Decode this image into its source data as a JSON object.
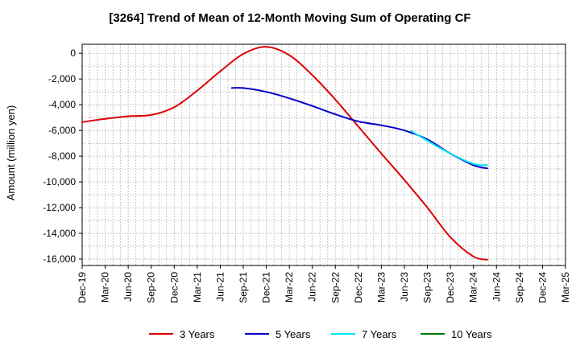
{
  "chart_data": {
    "type": "line",
    "title": "[3264]  Trend of Mean of 12-Month Moving Sum of Operating CF",
    "xlabel": "",
    "ylabel": "Amount (million yen)",
    "ylim": [
      -16500,
      700
    ],
    "yticks": [
      0,
      -2000,
      -4000,
      -6000,
      -8000,
      -10000,
      -12000,
      -14000,
      -16000
    ],
    "ytick_labels": [
      "0",
      "-2,000",
      "-4,000",
      "-6,000",
      "-8,000",
      "-10,000",
      "-12,000",
      "-14,000",
      "-16,000"
    ],
    "xticks": [
      "Dec-19",
      "Mar-20",
      "Jun-20",
      "Sep-20",
      "Dec-20",
      "Mar-21",
      "Jun-21",
      "Sep-21",
      "Dec-21",
      "Mar-22",
      "Jun-22",
      "Sep-22",
      "Dec-22",
      "Mar-23",
      "Jun-23",
      "Sep-23",
      "Dec-23",
      "Mar-24",
      "Jun-24",
      "Sep-24",
      "Dec-24",
      "Mar-25"
    ],
    "grid": true,
    "series": [
      {
        "name": "3 Years",
        "color": "#dd0000",
        "points": [
          [
            0,
            -5350
          ],
          [
            1,
            -5100
          ],
          [
            2,
            -4900
          ],
          [
            3,
            -4800
          ],
          [
            4,
            -4200
          ],
          [
            5,
            -2900
          ],
          [
            6,
            -1400
          ],
          [
            7,
            -50
          ],
          [
            8,
            500
          ],
          [
            9,
            -150
          ],
          [
            10,
            -1700
          ],
          [
            11,
            -3600
          ],
          [
            12,
            -5700
          ],
          [
            13,
            -7800
          ],
          [
            14,
            -9850
          ],
          [
            15,
            -12000
          ],
          [
            16,
            -14300
          ],
          [
            17,
            -15800
          ],
          [
            17.6,
            -16050
          ]
        ]
      },
      {
        "name": "5 Years",
        "color": "#0000cc",
        "points": [
          [
            6.5,
            -2700
          ],
          [
            7,
            -2700
          ],
          [
            8,
            -3000
          ],
          [
            9,
            -3500
          ],
          [
            10,
            -4100
          ],
          [
            11,
            -4750
          ],
          [
            12,
            -5300
          ],
          [
            13,
            -5600
          ],
          [
            14,
            -6000
          ],
          [
            15,
            -6700
          ],
          [
            16,
            -7800
          ],
          [
            17,
            -8700
          ],
          [
            17.6,
            -8950
          ]
        ]
      },
      {
        "name": "7 Years",
        "color": "#00e5ee",
        "points": [
          [
            14.3,
            -6050
          ],
          [
            15,
            -6800
          ],
          [
            16,
            -7800
          ],
          [
            17,
            -8600
          ],
          [
            17.6,
            -8700
          ]
        ]
      },
      {
        "name": "10 Years",
        "color": "#007700",
        "points": []
      }
    ]
  }
}
